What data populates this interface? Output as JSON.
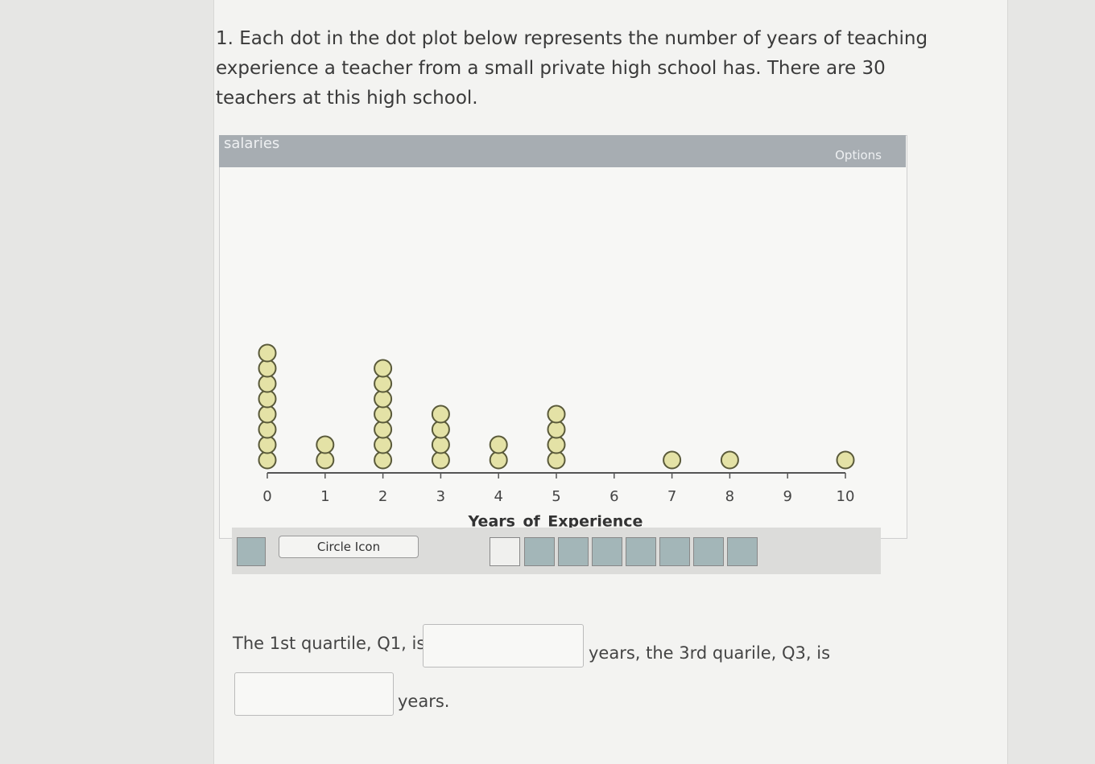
{
  "question": {
    "number": "1.",
    "text": "Each dot in the dot plot below represents the number of years of teaching experience a teacher from a small private high school has. There are 30 teachers at this high school."
  },
  "chart_data": {
    "type": "dot",
    "title": "salaries",
    "options_button": "Options",
    "x_label": "Years_of_Experience",
    "x": [
      0,
      1,
      2,
      3,
      4,
      5,
      6,
      7,
      8,
      9,
      10
    ],
    "values": [
      8,
      2,
      7,
      4,
      2,
      4,
      0,
      1,
      1,
      0,
      1
    ],
    "color": "#e4e2a6",
    "xlim": [
      0,
      10
    ],
    "xticks": [
      0,
      1,
      2,
      3,
      4,
      5,
      6,
      7,
      8,
      9,
      10
    ]
  },
  "toolbar": {
    "icon_select": "Circle Icon"
  },
  "answer": {
    "q1_prompt": "The 1st quartile, Q1, is",
    "q3_prompt": "years, the 3rd quarile, Q3, is",
    "end": "years."
  }
}
